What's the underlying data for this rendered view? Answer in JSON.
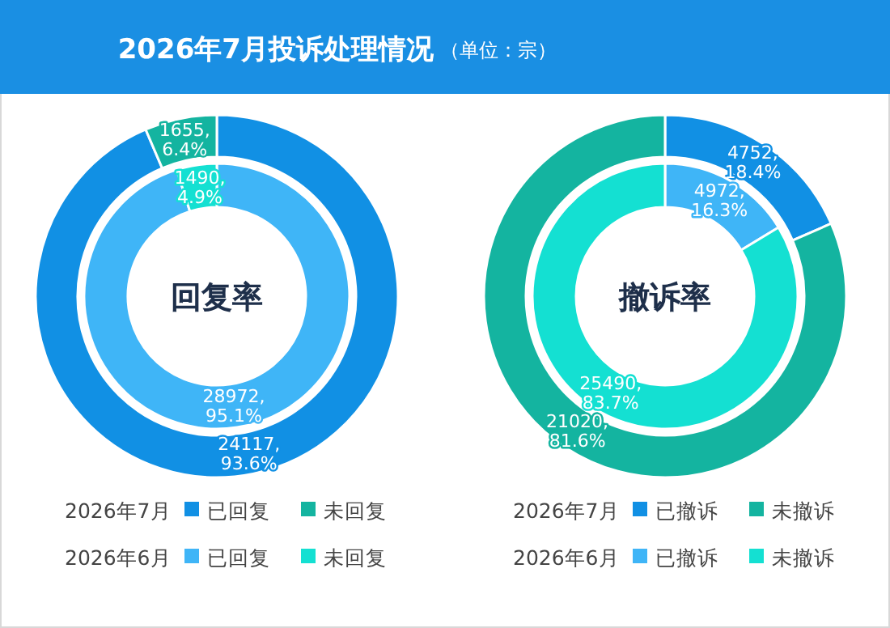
{
  "chart_data": [
    {
      "type": "donut",
      "title": "2026年7月投诉处理情况",
      "legend": "bottom",
      "legend_title": "2026年7月",
      "categories": [
        "已回复",
        "未回复"
      ],
      "colors": [
        "#1190e4",
        "#14b4a0"
      ],
      "values": [
        24117,
        1655
      ],
      "value_labels": [
        "24117, 93.6%",
        "1655, 6.4%"
      ]
    },
    {
      "type": "donut",
      "annotations": [
        "回复率"
      ],
      "legend": "bottom",
      "legend_title": "2026年6月",
      "categories": [
        "已回复",
        "未回复"
      ],
      "colors": [
        "#3fb5f7",
        "#14e0d2"
      ],
      "values": [
        28972,
        1490
      ],
      "value_labels": [
        "28972, 95.1%",
        "1490, 4.9%"
      ]
    },
    {
      "type": "donut",
      "subtitle": "（单位：宗）",
      "legend": "bottom",
      "legend_title": "2026年7月",
      "categories": [
        "已撤诉",
        "未撤诉"
      ],
      "colors": [
        "#1190e4",
        "#14b4a0"
      ],
      "values": [
        4752,
        21020
      ],
      "value_labels": [
        "4752, 18.4%",
        "21020, 81.6%"
      ]
    },
    {
      "type": "donut",
      "annotations": [
        "撤诉率"
      ],
      "legend": "bottom",
      "legend_title": "2026年6月",
      "categories": [
        "已撤诉",
        "未撤诉"
      ],
      "colors": [
        "#3fb5f7",
        "#14e0d2"
      ],
      "values": [
        4972,
        25490
      ],
      "value_labels": [
        "4972, 16.3%",
        "25490, 83.7%"
      ]
    }
  ]
}
